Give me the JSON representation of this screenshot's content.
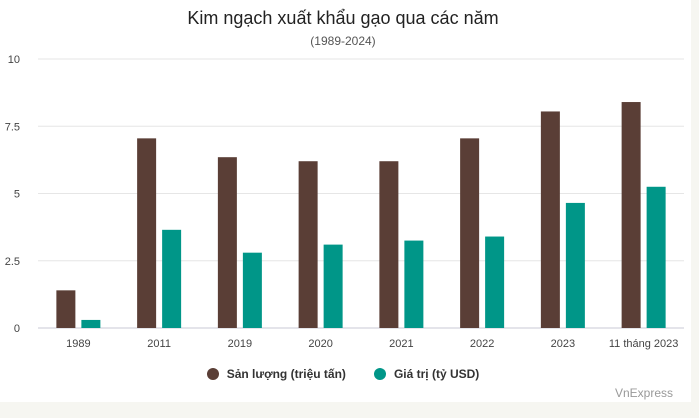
{
  "chart_data": {
    "type": "bar",
    "title": "Kim ngạch xuất khẩu gạo qua các năm",
    "subtitle": "(1989-2024)",
    "categories": [
      "1989",
      "2011",
      "2019",
      "2020",
      "2021",
      "2022",
      "2023",
      "11 tháng 2023"
    ],
    "series": [
      {
        "name": "Sản lượng (triệu tấn)",
        "color": "#5a3e36",
        "values": [
          1.4,
          7.05,
          6.35,
          6.2,
          6.2,
          7.05,
          8.05,
          8.4
        ]
      },
      {
        "name": "Giá trị (tỷ USD)",
        "color": "#009688",
        "values": [
          0.3,
          3.65,
          2.8,
          3.1,
          3.25,
          3.4,
          4.65,
          5.25
        ]
      }
    ],
    "yticks": [
      "0",
      "2.5",
      "5",
      "7.5",
      "10"
    ],
    "ylim": [
      0,
      10
    ],
    "grid": true,
    "legend": "bottom-center"
  },
  "credit": "VnExpress"
}
